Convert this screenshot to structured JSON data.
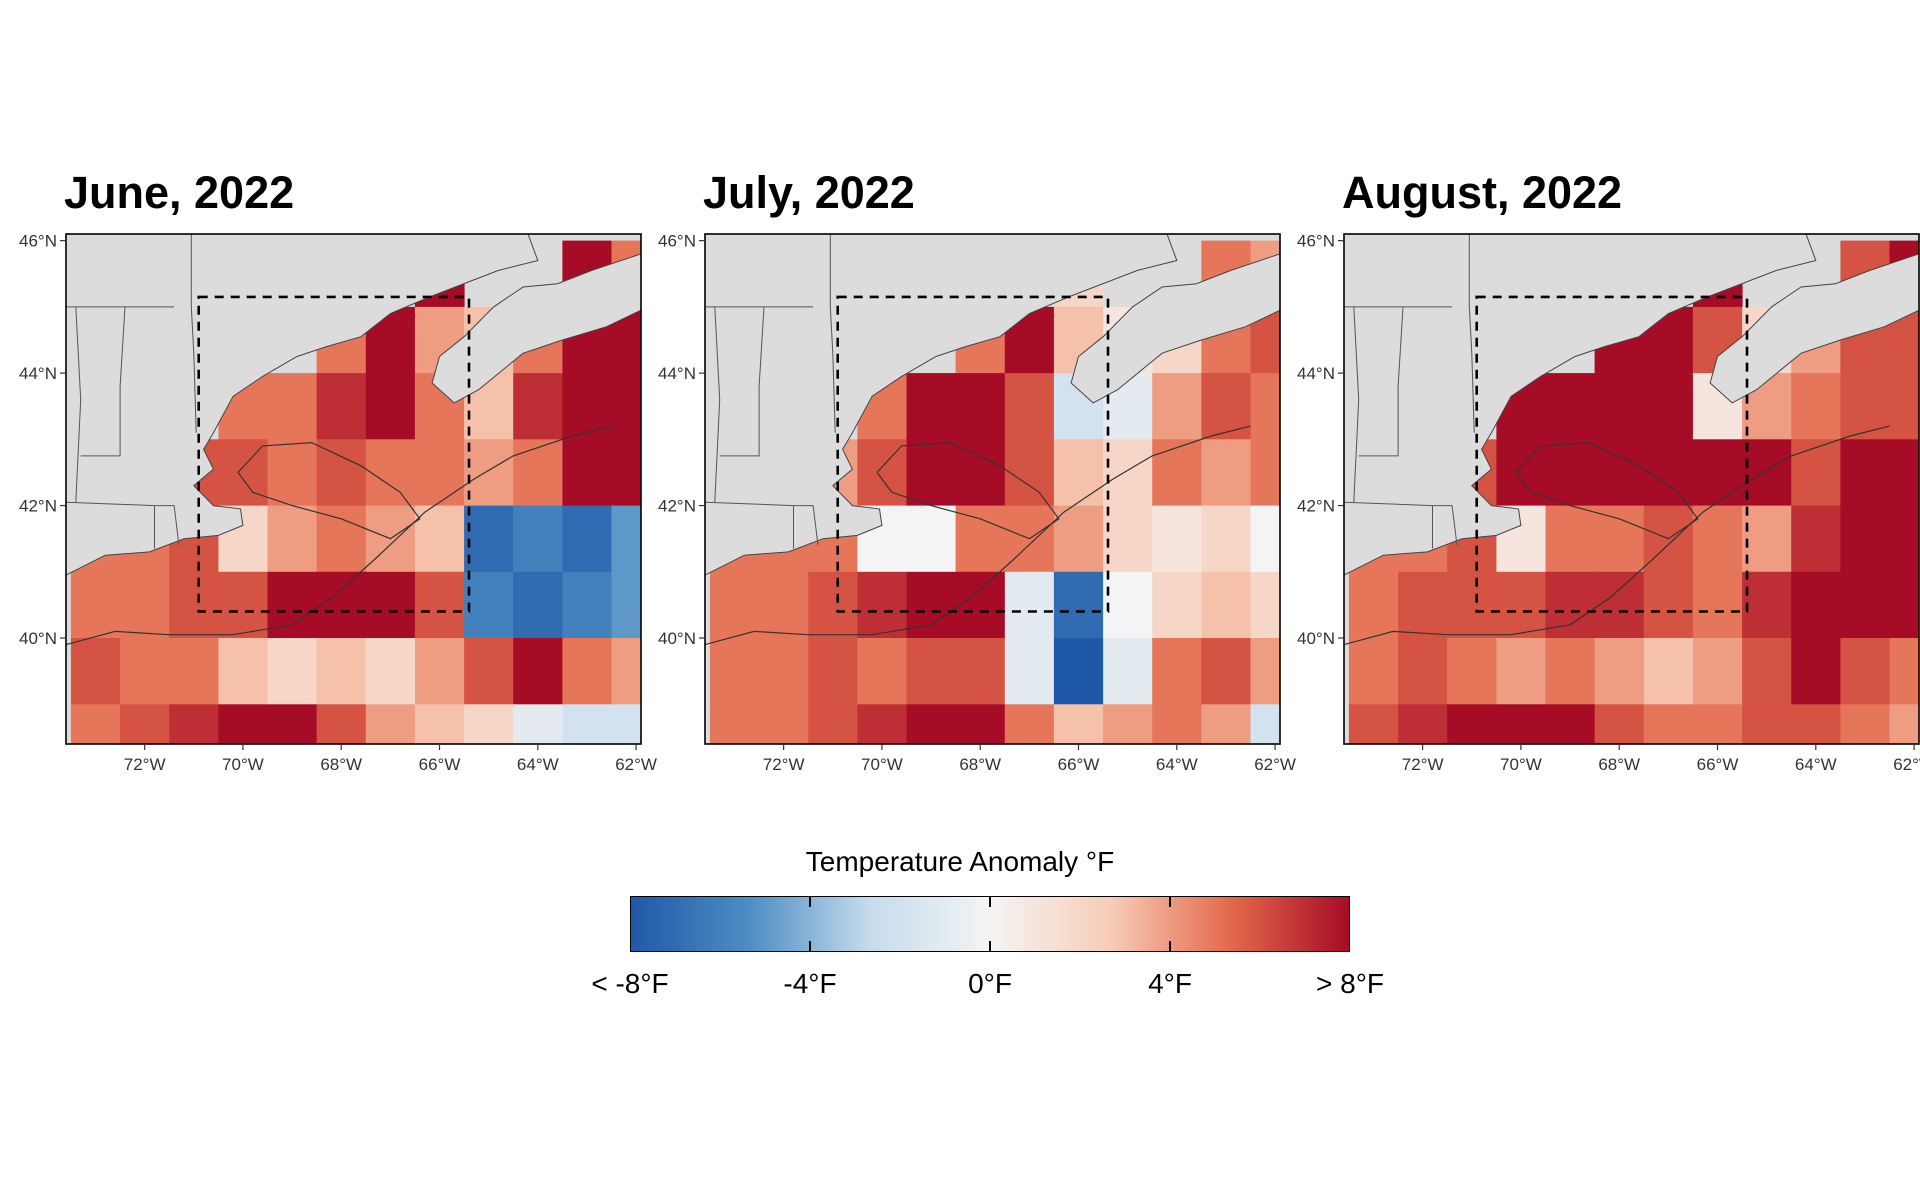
{
  "panels": [
    {
      "title": "June, 2022"
    },
    {
      "title": "July, 2022"
    },
    {
      "title": "August, 2022"
    }
  ],
  "axes": {
    "lat_labels": [
      "46°N",
      "44°N",
      "42°N",
      "40°N"
    ],
    "lon_labels": [
      "72°W",
      "70°W",
      "68°W",
      "66°W",
      "64°W",
      "62°W"
    ],
    "lat_values": [
      46,
      44,
      42,
      40
    ],
    "lon_values": [
      -72,
      -70,
      -68,
      -66,
      -64,
      -62
    ],
    "lon_range": [
      -73.6,
      -61.9
    ],
    "lat_range": [
      38.4,
      46.1
    ]
  },
  "study_box": {
    "lon": [
      -70.9,
      -65.4
    ],
    "lat": [
      40.4,
      45.15
    ]
  },
  "legend": {
    "title": "Temperature Anomaly °F",
    "labels": [
      "< -8°F",
      "-4°F",
      "0°F",
      "4°F",
      "> 8°F"
    ],
    "values": [
      -8,
      -4,
      0,
      4,
      8
    ],
    "colors": [
      "#2058a8",
      "#4e8ec4",
      "#c6dcec",
      "#f4f4f4",
      "#f7cdb8",
      "#e46a4c",
      "#a60c26"
    ]
  },
  "chart_data": {
    "type": "heatmap",
    "title": "",
    "xlabel": "",
    "ylabel": "",
    "unit": "°F",
    "series": [
      {
        "name": "June, 2022",
        "x": [
          -73,
          -72,
          -71,
          -70,
          -69,
          -68,
          -67,
          -66,
          -65,
          -64,
          -63,
          -62
        ],
        "y": [
          45.5,
          44.5,
          43.5,
          42.5,
          41.5,
          40.5,
          39.5,
          38.5
        ],
        "values": [
          [
            null,
            null,
            null,
            null,
            null,
            null,
            null,
            8,
            null,
            null,
            8,
            5
          ],
          [
            null,
            null,
            null,
            null,
            null,
            5,
            8,
            4,
            3,
            5,
            8,
            8
          ],
          [
            null,
            null,
            null,
            5,
            5,
            7,
            8,
            5,
            3,
            7,
            8,
            8
          ],
          [
            null,
            null,
            6,
            6,
            5,
            6,
            5,
            5,
            4,
            5,
            8,
            8
          ],
          [
            5,
            5,
            6,
            2,
            4,
            5,
            4,
            3,
            -7,
            -6,
            -7,
            -5
          ],
          [
            5,
            5,
            6,
            6,
            8,
            8,
            8,
            6,
            -6,
            -7,
            -6,
            -5
          ],
          [
            6,
            5,
            5,
            3,
            2,
            3,
            2,
            4,
            6,
            8,
            5,
            4
          ],
          [
            5,
            6,
            7,
            8,
            8,
            6,
            4,
            3,
            2,
            -1,
            -2,
            -2
          ]
        ]
      },
      {
        "name": "July, 2022",
        "x": [
          -73,
          -72,
          -71,
          -70,
          -69,
          -68,
          -67,
          -66,
          -65,
          -64,
          -63,
          -62
        ],
        "y": [
          45.5,
          44.5,
          43.5,
          42.5,
          41.5,
          40.5,
          39.5,
          38.5
        ],
        "values": [
          [
            null,
            null,
            null,
            null,
            null,
            null,
            null,
            2,
            null,
            null,
            5,
            4
          ],
          [
            null,
            null,
            null,
            null,
            null,
            5,
            8,
            3,
            1,
            2,
            5,
            6
          ],
          [
            null,
            null,
            null,
            5,
            8,
            8,
            6,
            -2,
            -1,
            4,
            6,
            5
          ],
          [
            null,
            null,
            4,
            6,
            8,
            8,
            6,
            3,
            2,
            5,
            4,
            5
          ],
          [
            5,
            5,
            5,
            0,
            0,
            5,
            5,
            4,
            2,
            1,
            2,
            0
          ],
          [
            5,
            5,
            6,
            7,
            8,
            8,
            -1,
            -7,
            0,
            2,
            3,
            2
          ],
          [
            5,
            5,
            6,
            5,
            6,
            6,
            -1,
            -8,
            -1,
            5,
            6,
            4
          ],
          [
            5,
            5,
            6,
            7,
            8,
            8,
            5,
            3,
            4,
            5,
            4,
            -2
          ]
        ]
      },
      {
        "name": "August, 2022",
        "x": [
          -73,
          -72,
          -71,
          -70,
          -69,
          -68,
          -67,
          -66,
          -65,
          -64,
          -63,
          -62
        ],
        "y": [
          45.5,
          44.5,
          43.5,
          42.5,
          41.5,
          40.5,
          39.5,
          38.5
        ],
        "values": [
          [
            null,
            null,
            null,
            null,
            null,
            null,
            null,
            8,
            null,
            null,
            6,
            8
          ],
          [
            null,
            null,
            null,
            null,
            null,
            8,
            8,
            6,
            2,
            4,
            6,
            6
          ],
          [
            null,
            null,
            null,
            8,
            8,
            8,
            8,
            1,
            4,
            5,
            6,
            6
          ],
          [
            null,
            null,
            6,
            8,
            8,
            8,
            8,
            8,
            8,
            6,
            8,
            8
          ],
          [
            5,
            5,
            6,
            1,
            5,
            5,
            6,
            5,
            4,
            7,
            8,
            8
          ],
          [
            5,
            6,
            6,
            6,
            7,
            7,
            6,
            5,
            7,
            8,
            8,
            8
          ],
          [
            5,
            6,
            5,
            4,
            5,
            4,
            3,
            4,
            6,
            8,
            6,
            5
          ],
          [
            6,
            7,
            8,
            8,
            8,
            6,
            5,
            5,
            6,
            6,
            5,
            4
          ]
        ]
      }
    ]
  }
}
